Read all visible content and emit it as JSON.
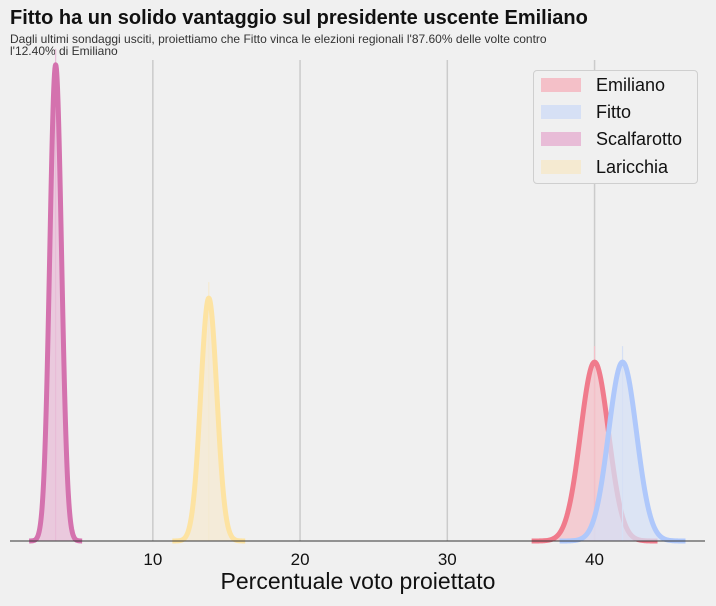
{
  "chart_data": {
    "type": "area",
    "title": "Fitto ha un solido vantaggio sul presidente uscente Emiliano",
    "subtitle": "Dagli ultimi sondaggi usciti, proiettiamo che Fitto vinca le elezioni regionali l'87.60% delle volte contro l'12.40% di Emiliano",
    "xlabel": "Percentuale voto proiettato",
    "ylabel": "",
    "xlim": [
      0.3,
      47.5
    ],
    "ylim": [
      0,
      1.0
    ],
    "xticks": [
      10,
      20,
      30,
      40
    ],
    "grid": "vertical",
    "legend_position": "top-right",
    "series": [
      {
        "name": "Emiliano",
        "color": "#f07b8c",
        "fill": "#f4c0c8",
        "mean": 40.0,
        "sd": 0.95,
        "peak": 0.372
      },
      {
        "name": "Fitto",
        "color": "#afc8fb",
        "fill": "#d6e0f5",
        "mean": 41.9,
        "sd": 0.95,
        "peak": 0.372
      },
      {
        "name": "Scalfarotto",
        "color": "#d472ae",
        "fill": "#e8bcd7",
        "mean": 3.4,
        "sd": 0.4,
        "peak": 0.99
      },
      {
        "name": "Laricchia",
        "color": "#fde3a2",
        "fill": "#f5ead1",
        "mean": 13.8,
        "sd": 0.55,
        "peak": 0.505
      }
    ]
  }
}
